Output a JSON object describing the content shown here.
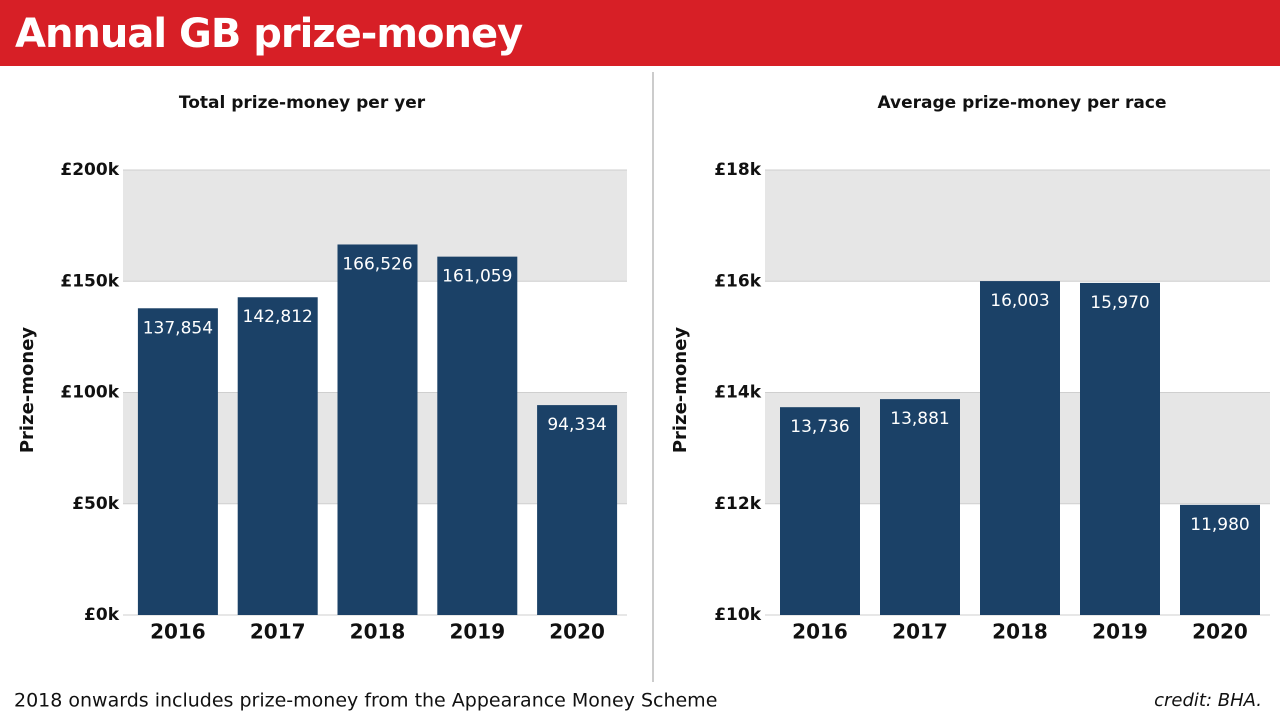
{
  "header": {
    "title": "Annual GB prize-money"
  },
  "footnote": "2018 onwards includes prize-money from the Appearance Money Scheme",
  "credit": "credit: BHA.",
  "chart_data": [
    {
      "type": "bar",
      "title": "Total prize-money per yer",
      "y_label": "Prize-money",
      "categories": [
        "2016",
        "2017",
        "2018",
        "2019",
        "2020"
      ],
      "values": [
        137854,
        142812,
        166526,
        161059,
        94334
      ],
      "value_labels": [
        "137,854",
        "142,812",
        "166,526",
        "161,059",
        "94,334"
      ],
      "color": "#1b4167",
      "ylim": [
        0,
        200000
      ],
      "yticks": [
        {
          "value": 0,
          "label": "£0k"
        },
        {
          "value": 50000,
          "label": "£50k"
        },
        {
          "value": 100000,
          "label": "£100k"
        },
        {
          "value": 150000,
          "label": "£150k"
        },
        {
          "value": 200000,
          "label": "£200k"
        }
      ],
      "grid": true
    },
    {
      "type": "bar",
      "title": "Average prize-money per race",
      "y_label": "Prize-money",
      "categories": [
        "2016",
        "2017",
        "2018",
        "2019",
        "2020"
      ],
      "values": [
        13736,
        13881,
        16003,
        15970,
        11980
      ],
      "value_labels": [
        "13,736",
        "13,881",
        "16,003",
        "15,970",
        "11,980"
      ],
      "color": "#1b4167",
      "ylim": [
        10000,
        18000
      ],
      "yticks": [
        {
          "value": 10000,
          "label": "£10k"
        },
        {
          "value": 12000,
          "label": "£12k"
        },
        {
          "value": 14000,
          "label": "£14k"
        },
        {
          "value": 16000,
          "label": "£16k"
        },
        {
          "value": 18000,
          "label": "£18k"
        }
      ],
      "grid": true
    }
  ]
}
